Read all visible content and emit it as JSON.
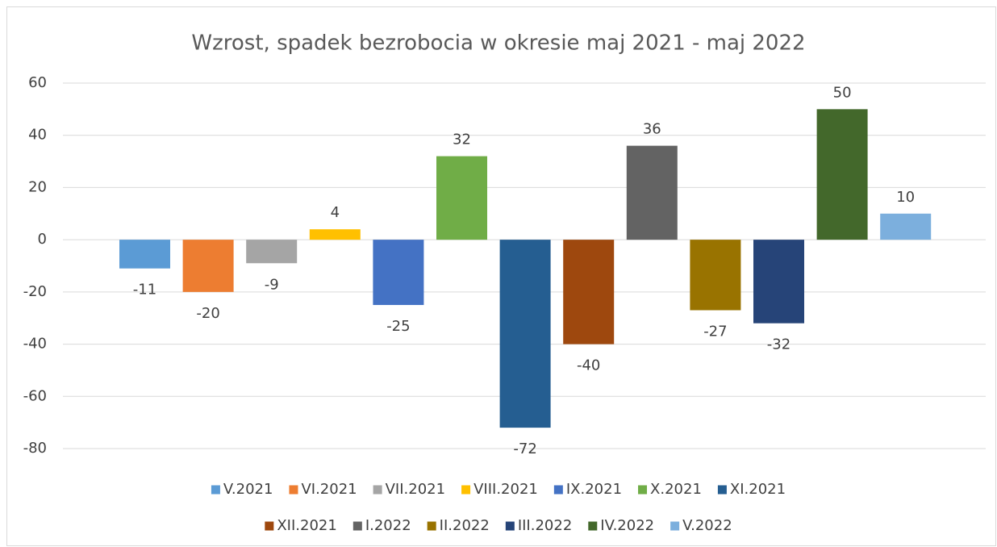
{
  "chart_data": {
    "type": "bar",
    "title": "Wzrost, spadek bezrobocia w okresie maj 2021 - maj 2022",
    "ylim": [
      -80,
      60
    ],
    "yticks": [
      -80,
      -60,
      -40,
      -20,
      0,
      20,
      40,
      60
    ],
    "grid": true,
    "legend": "bottom",
    "series": [
      {
        "name": "V.2021",
        "color": "#5b9bd5",
        "values": [
          -11
        ]
      },
      {
        "name": "VI.2021",
        "color": "#ed7d31",
        "values": [
          -20
        ]
      },
      {
        "name": "VII.2021",
        "color": "#a5a5a5",
        "values": [
          -9
        ]
      },
      {
        "name": "VIII.2021",
        "color": "#ffc000",
        "values": [
          4
        ]
      },
      {
        "name": "IX.2021",
        "color": "#4472c4",
        "values": [
          -25
        ]
      },
      {
        "name": "X.2021",
        "color": "#70ad47",
        "values": [
          32
        ]
      },
      {
        "name": "XI.2021",
        "color": "#255e91",
        "values": [
          -72
        ]
      },
      {
        "name": "XII.2021",
        "color": "#9e480e",
        "values": [
          -40
        ]
      },
      {
        "name": "I.2022",
        "color": "#636363",
        "values": [
          36
        ]
      },
      {
        "name": "II.2022",
        "color": "#997300",
        "values": [
          -27
        ]
      },
      {
        "name": "III.2022",
        "color": "#264478",
        "values": [
          -32
        ]
      },
      {
        "name": "IV.2022",
        "color": "#43682b",
        "values": [
          50
        ]
      },
      {
        "name": "V.2022",
        "color": "#7cafdd",
        "values": [
          10
        ]
      }
    ]
  }
}
